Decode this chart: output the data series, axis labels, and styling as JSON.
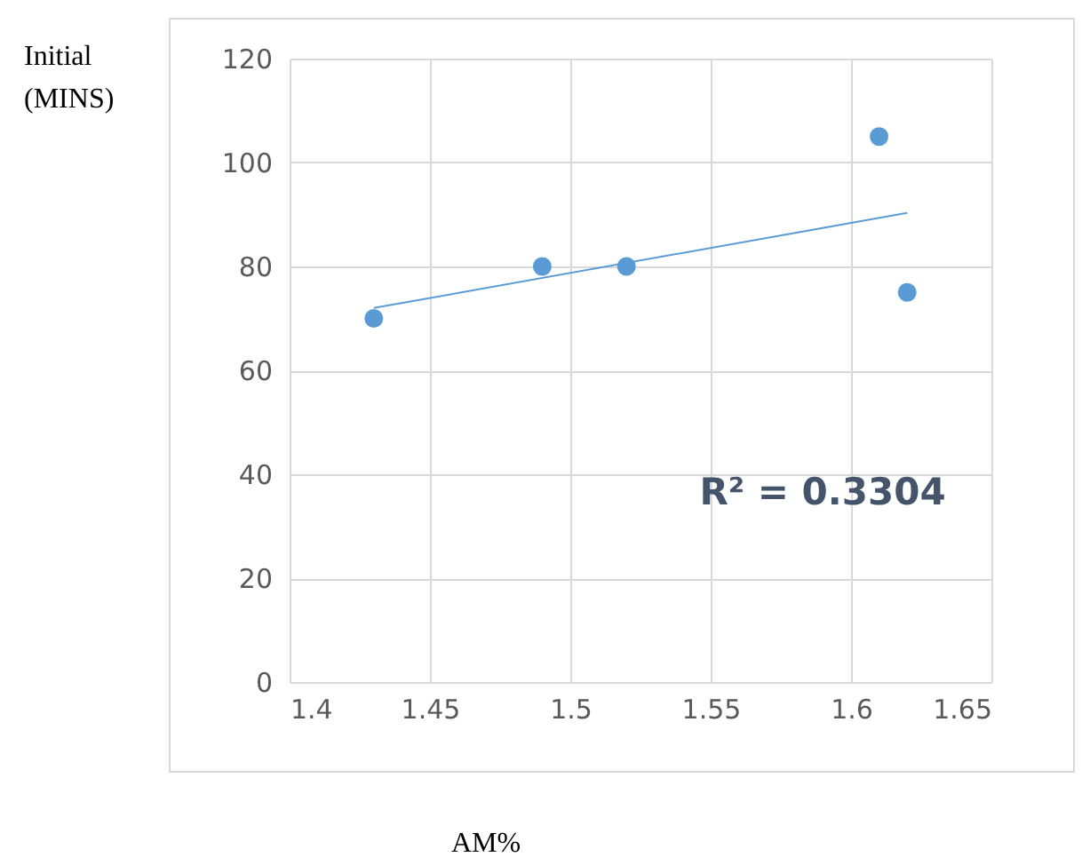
{
  "chart_data": {
    "type": "scatter",
    "xlabel": "AM%",
    "ylabel": "Initial (MINS)",
    "annotations": [
      "R² = 0.3304"
    ],
    "series": [
      {
        "marker": "circle",
        "color": "#5b9bd5",
        "x": [
          1.43,
          1.49,
          1.52,
          1.61,
          1.62
        ],
        "values": [
          70,
          80,
          80,
          105,
          75
        ]
      },
      {
        "type": "line",
        "color": "#5b9bd5",
        "x": [
          1.43,
          1.62
        ],
        "values": [
          72,
          90.3
        ]
      }
    ],
    "xlim": [
      1.4,
      1.65
    ],
    "xticks": [
      1.4,
      1.45,
      1.5,
      1.55,
      1.6,
      1.65
    ],
    "ylim": [
      0,
      120
    ],
    "yticks": [
      0,
      20,
      40,
      60,
      80,
      100,
      120
    ],
    "grid": true
  }
}
